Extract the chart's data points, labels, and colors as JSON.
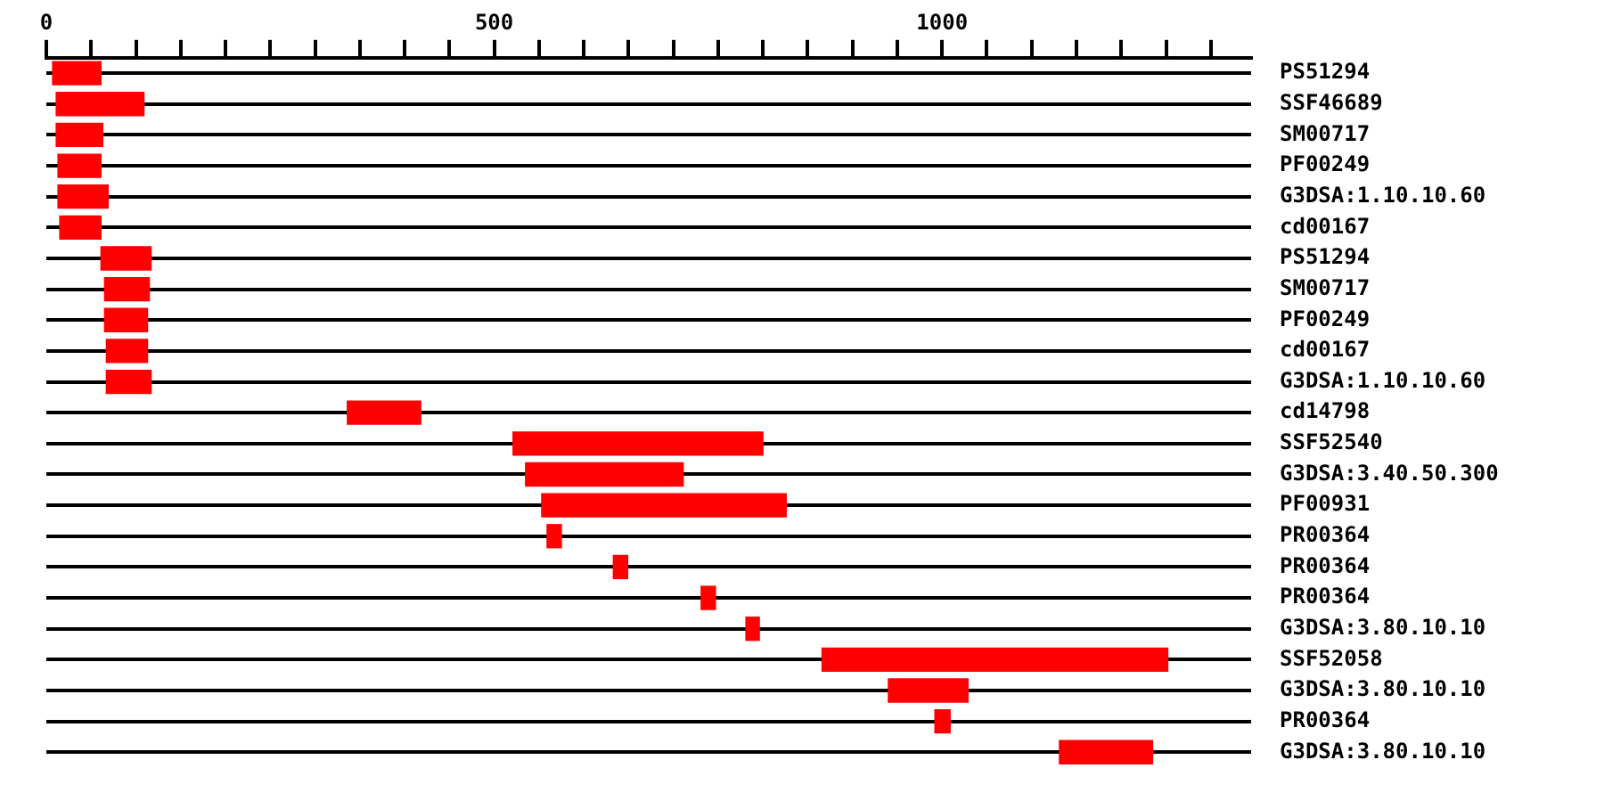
{
  "chart_data": {
    "type": "bar",
    "orientation": "horizontal",
    "categories": [
      "PS51294",
      "SSF46689",
      "SM00717",
      "PF00249",
      "G3DSA:1.10.10.60",
      "cd00167",
      "PS51294",
      "SM00717",
      "PF00249",
      "cd00167",
      "G3DSA:1.10.10.60",
      "cd14798",
      "SSF52540",
      "G3DSA:3.40.50.300",
      "PF00931",
      "PR00364",
      "PR00364",
      "PR00364",
      "G3DSA:3.80.10.10",
      "SSF52058",
      "G3DSA:3.80.10.10",
      "PR00364",
      "G3DSA:3.80.10.10"
    ],
    "base": [
      7,
      11,
      11,
      13,
      13,
      15,
      61,
      65,
      65,
      67,
      67,
      336,
      521,
      535,
      553,
      559,
      633,
      731,
      781,
      866,
      940,
      992,
      1131
    ],
    "values": [
      54,
      98,
      52,
      48,
      56,
      46,
      56,
      50,
      48,
      46,
      50,
      82,
      279,
      176,
      273,
      16,
      16,
      16,
      15,
      386,
      89,
      17,
      104
    ],
    "color": "#ff0000",
    "xlim": [
      0,
      1345
    ],
    "xticks": [
      0,
      {
        "value": 50,
        "label": null
      },
      {
        "value": 100,
        "label": null
      },
      {
        "value": 150,
        "label": null
      },
      {
        "value": 200,
        "label": null
      },
      {
        "value": 250,
        "label": null
      },
      {
        "value": 300,
        "label": null
      },
      {
        "value": 350,
        "label": null
      },
      {
        "value": 400,
        "label": null
      },
      {
        "value": 450,
        "label": null
      },
      500,
      {
        "value": 550,
        "label": null
      },
      {
        "value": 600,
        "label": null
      },
      {
        "value": 650,
        "label": null
      },
      {
        "value": 700,
        "label": null
      },
      {
        "value": 750,
        "label": null
      },
      {
        "value": 800,
        "label": null
      },
      {
        "value": 850,
        "label": null
      },
      {
        "value": 900,
        "label": null
      },
      {
        "value": 950,
        "label": null
      },
      1000,
      {
        "value": 1050,
        "label": null
      },
      {
        "value": 1100,
        "label": null
      },
      {
        "value": 1150,
        "label": null
      },
      {
        "value": 1200,
        "label": null
      },
      {
        "value": 1250,
        "label": null
      },
      {
        "value": 1300,
        "label": null
      }
    ],
    "grid": "y",
    "legend": false
  }
}
